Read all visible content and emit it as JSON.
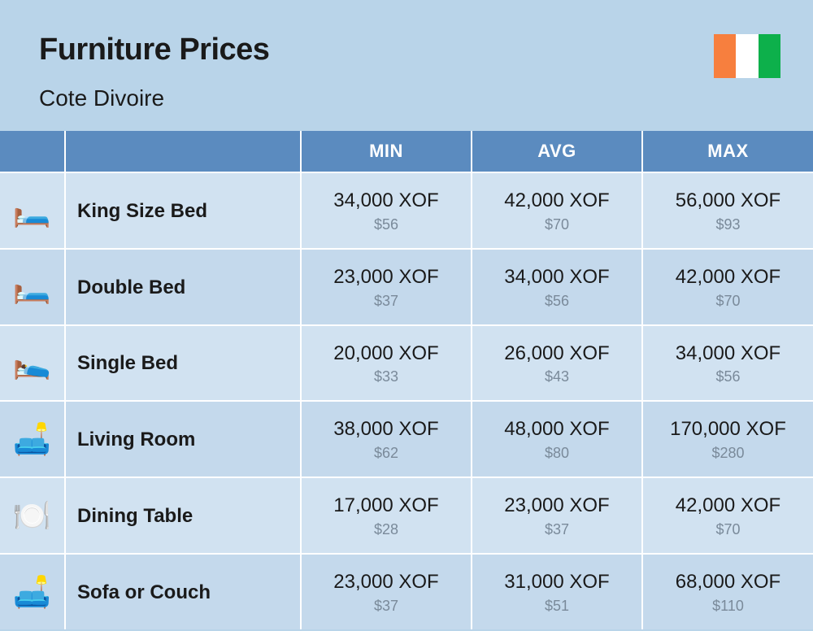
{
  "header": {
    "title": "Furniture Prices",
    "subtitle": "Cote Divoire",
    "flag_colors": [
      "#f77f3e",
      "#ffffff",
      "#0db04b"
    ]
  },
  "table": {
    "header_bg": "#5b8bbf",
    "header_text_color": "#ffffff",
    "row_odd_bg": "#d1e2f1",
    "row_even_bg": "#c4d9ec",
    "border_color": "#ffffff",
    "columns": [
      "MIN",
      "AVG",
      "MAX"
    ],
    "rows": [
      {
        "icon": "🛏️",
        "name": "King Size Bed",
        "min": {
          "xof": "34,000 XOF",
          "usd": "$56"
        },
        "avg": {
          "xof": "42,000 XOF",
          "usd": "$70"
        },
        "max": {
          "xof": "56,000 XOF",
          "usd": "$93"
        }
      },
      {
        "icon": "🛏️",
        "name": "Double Bed",
        "min": {
          "xof": "23,000 XOF",
          "usd": "$37"
        },
        "avg": {
          "xof": "34,000 XOF",
          "usd": "$56"
        },
        "max": {
          "xof": "42,000 XOF",
          "usd": "$70"
        }
      },
      {
        "icon": "🛌",
        "name": "Single Bed",
        "min": {
          "xof": "20,000 XOF",
          "usd": "$33"
        },
        "avg": {
          "xof": "26,000 XOF",
          "usd": "$43"
        },
        "max": {
          "xof": "34,000 XOF",
          "usd": "$56"
        }
      },
      {
        "icon": "🛋️",
        "name": "Living Room",
        "min": {
          "xof": "38,000 XOF",
          "usd": "$62"
        },
        "avg": {
          "xof": "48,000 XOF",
          "usd": "$80"
        },
        "max": {
          "xof": "170,000 XOF",
          "usd": "$280"
        }
      },
      {
        "icon": "🍽️",
        "name": "Dining Table",
        "min": {
          "xof": "17,000 XOF",
          "usd": "$28"
        },
        "avg": {
          "xof": "23,000 XOF",
          "usd": "$37"
        },
        "max": {
          "xof": "42,000 XOF",
          "usd": "$70"
        }
      },
      {
        "icon": "🛋️",
        "name": "Sofa or Couch",
        "min": {
          "xof": "23,000 XOF",
          "usd": "$37"
        },
        "avg": {
          "xof": "31,000 XOF",
          "usd": "$51"
        },
        "max": {
          "xof": "68,000 XOF",
          "usd": "$110"
        }
      }
    ]
  },
  "style": {
    "page_bg": "#b9d4e9",
    "title_color": "#1a1a1a",
    "title_fontsize": 38,
    "subtitle_fontsize": 28,
    "price_main_color": "#1a1a1a",
    "price_main_fontsize": 24,
    "price_sub_color": "#7a8a9a",
    "price_sub_fontsize": 18,
    "name_fontsize": 24
  }
}
